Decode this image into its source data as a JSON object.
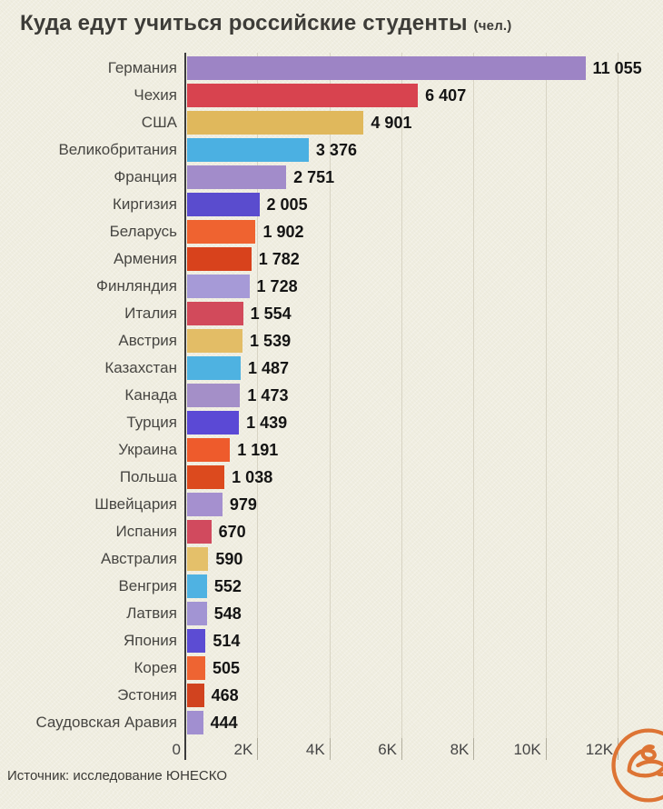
{
  "title": {
    "text": "Куда едут учиться российские студенты",
    "unit": "(чел.)"
  },
  "source": "Источник: исследование ЮНЕСКО",
  "axis": {
    "tick_labels": [
      "0",
      "2K",
      "4K",
      "6K",
      "8K",
      "10K",
      "12K"
    ],
    "tick_values": [
      0,
      2000,
      4000,
      6000,
      8000,
      10000,
      12000
    ],
    "max": 12000
  },
  "colors": {
    "background": "#f0eee1",
    "gridline": "#d8d4c4",
    "axis_line": "#3b3b3b",
    "title_text": "#3d3c38",
    "logo_accent": "#dd7434"
  },
  "logo": {
    "name": "publisher-logo"
  },
  "chart_data": {
    "type": "bar",
    "orientation": "horizontal",
    "title": "Куда едут учиться российские студенты (чел.)",
    "xlabel": "",
    "ylabel": "",
    "xlim": [
      0,
      12000
    ],
    "grid": true,
    "categories": [
      "Германия",
      "Чехия",
      "США",
      "Великобритания",
      "Франция",
      "Киргизия",
      "Беларусь",
      "Армения",
      "Финляндия",
      "Италия",
      "Австрия",
      "Казахстан",
      "Канада",
      "Турция",
      "Украина",
      "Польша",
      "Швейцария",
      "Испания",
      "Австралия",
      "Венгрия",
      "Латвия",
      "Япония",
      "Корея",
      "Эстония",
      "Саудовская Аравия"
    ],
    "values": [
      11055,
      6407,
      4901,
      3376,
      2751,
      2005,
      1902,
      1782,
      1728,
      1554,
      1539,
      1487,
      1473,
      1439,
      1191,
      1038,
      979,
      670,
      590,
      552,
      548,
      514,
      505,
      468,
      444
    ],
    "value_labels": [
      "11 055",
      "6 407",
      "4 901",
      "3 376",
      "2 751",
      "2 005",
      "1 902",
      "1 782",
      "1 728",
      "1 554",
      "1 539",
      "1 487",
      "1 473",
      "1 439",
      "1 191",
      "1 038",
      "979",
      "670",
      "590",
      "552",
      "548",
      "514",
      "505",
      "468",
      "444"
    ],
    "bar_colors": [
      "#9d84c5",
      "#d8434f",
      "#e0b85c",
      "#4bb0e2",
      "#a28cca",
      "#5a4cce",
      "#ef6330",
      "#d8421c",
      "#a69ad7",
      "#d24a5b",
      "#e3bd66",
      "#4eb2e1",
      "#a48fc8",
      "#5b49d5",
      "#ee5b2c",
      "#dc4a1e",
      "#a590cf",
      "#d14a5e",
      "#e4c06a",
      "#4fb2e2",
      "#a294d3",
      "#5c4cd3",
      "#ee6432",
      "#d1431f",
      "#a18fd0"
    ],
    "source": "Источник: исследование ЮНЕСКО"
  }
}
